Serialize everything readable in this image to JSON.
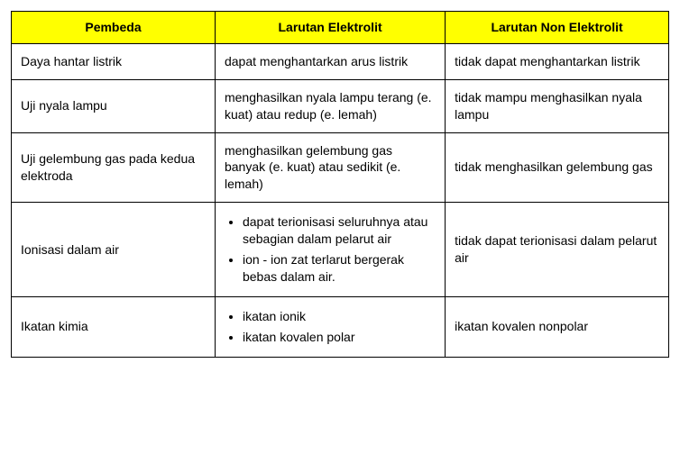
{
  "table": {
    "header_bg": "#ffff00",
    "border_color": "#000000",
    "font_family": "Arial",
    "font_size_pt": 11,
    "columns": [
      {
        "label": "Pembeda",
        "width_pct": 31,
        "align": "center"
      },
      {
        "label": "Larutan Elektrolit",
        "width_pct": 35,
        "align": "center"
      },
      {
        "label": "Larutan Non Elektrolit",
        "width_pct": 34,
        "align": "center"
      }
    ],
    "rows": [
      {
        "pembeda": "Daya hantar listrik",
        "elektrolit": "dapat menghantarkan arus listrik",
        "elektrolit_bullets": [],
        "non_elektrolit": "tidak dapat menghantarkan listrik"
      },
      {
        "pembeda": "Uji nyala lampu",
        "elektrolit": "menghasilkan nyala lampu terang (e. kuat) atau redup (e. lemah)",
        "elektrolit_bullets": [],
        "non_elektrolit": "tidak mampu menghasilkan nyala lampu"
      },
      {
        "pembeda": "Uji gelembung gas pada kedua elektroda",
        "elektrolit": "menghasilkan gelembung gas banyak (e. kuat) atau sedikit (e. lemah)",
        "elektrolit_bullets": [],
        "non_elektrolit": "tidak menghasilkan gelembung gas"
      },
      {
        "pembeda": "Ionisasi dalam air",
        "elektrolit": "",
        "elektrolit_bullets": [
          "dapat terionisasi seluruhnya atau sebagian dalam pelarut air",
          "ion - ion zat terlarut bergerak bebas dalam air."
        ],
        "non_elektrolit": "tidak dapat terionisasi dalam pelarut air"
      },
      {
        "pembeda": "Ikatan kimia",
        "elektrolit": "",
        "elektrolit_bullets": [
          "ikatan ionik",
          "ikatan kovalen polar"
        ],
        "non_elektrolit": "ikatan kovalen nonpolar"
      }
    ]
  }
}
